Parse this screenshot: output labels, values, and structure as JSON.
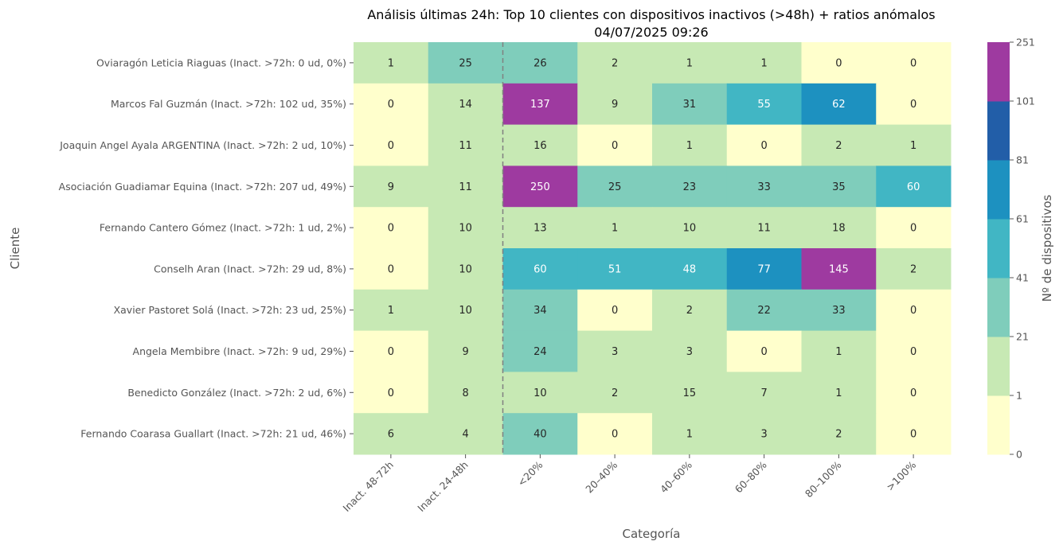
{
  "chart_data": {
    "type": "heatmap",
    "title_line1": "Análisis últimas 24h: Top 10 clientes con dispositivos inactivos (>48h) + ratios anómalos",
    "title_line2": "04/07/2025 09:26",
    "xlabel": "Categoría",
    "ylabel": "Cliente",
    "colorbar_label": "Nº de dispositivos",
    "columns": [
      "Inact. 48-72h",
      "Inact. 24-48h",
      "<20%",
      "20–40%",
      "40–60%",
      "60–80%",
      "80–100%",
      ">100%"
    ],
    "rows": [
      "Oviaragón Leticia Riaguas (Inact. >72h: 0 ud, 0%)",
      "Marcos Fal Guzmán (Inact. >72h: 102 ud, 35%)",
      "Joaquin Angel Ayala ARGENTINA (Inact. >72h: 2 ud, 10%)",
      "Asociación Guadiamar Equina (Inact. >72h: 207 ud, 49%)",
      "Fernando Cantero Gómez (Inact. >72h: 1 ud, 2%)",
      "Conselh Aran (Inact. >72h: 29 ud, 8%)",
      "Xavier Pastoret Solá (Inact. >72h: 23 ud, 25%)",
      "Angela Membibre (Inact. >72h: 9 ud, 29%)",
      "Benedicto González (Inact. >72h: 2 ud, 6%)",
      "Fernando Coarasa Guallart (Inact. >72h: 21 ud, 46%)"
    ],
    "values": [
      [
        1,
        25,
        26,
        2,
        1,
        1,
        0,
        0
      ],
      [
        0,
        14,
        137,
        9,
        31,
        55,
        62,
        0
      ],
      [
        0,
        11,
        16,
        0,
        1,
        0,
        2,
        1
      ],
      [
        9,
        11,
        250,
        25,
        23,
        33,
        35,
        60
      ],
      [
        0,
        10,
        13,
        1,
        10,
        11,
        18,
        0
      ],
      [
        0,
        10,
        60,
        51,
        48,
        77,
        145,
        2
      ],
      [
        1,
        10,
        34,
        0,
        2,
        22,
        33,
        0
      ],
      [
        0,
        9,
        24,
        3,
        3,
        0,
        1,
        0
      ],
      [
        0,
        8,
        10,
        2,
        15,
        7,
        1,
        0
      ],
      [
        6,
        4,
        40,
        0,
        1,
        3,
        2,
        0
      ]
    ],
    "colorbar_bounds": [
      0,
      1,
      21,
      41,
      61,
      81,
      101,
      251
    ],
    "colorbar_colors": [
      "#ffffcc",
      "#c7e9b4",
      "#7fcdbb",
      "#41b6c4",
      "#1d91c0",
      "#225ea8",
      "#9e3aa0"
    ],
    "separator_after_column": 2,
    "separator_style": "dashed"
  }
}
